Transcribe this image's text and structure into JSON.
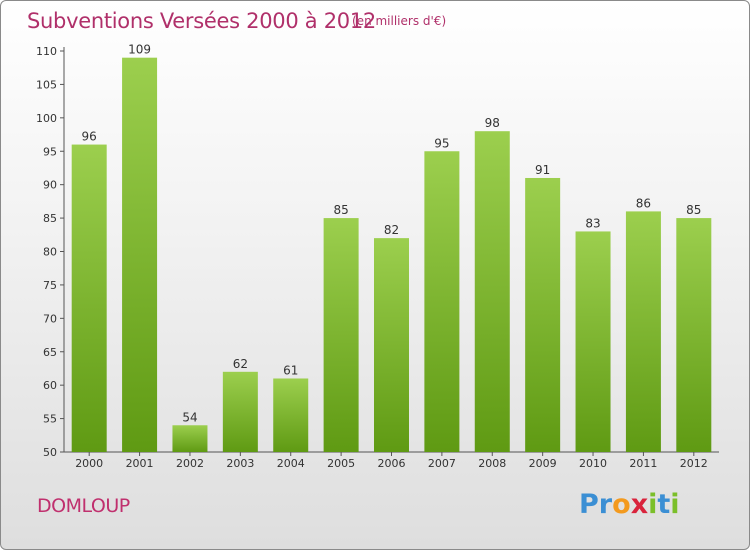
{
  "title": "Subventions Versées 2000 à 2012",
  "subtitle": "(en milliers d'€)",
  "commune": "DOMLOUP",
  "brand": {
    "letters": [
      {
        "char": "P",
        "color": "#3b8fd4"
      },
      {
        "char": "r",
        "color": "#3b8fd4"
      },
      {
        "char": "o",
        "color": "#f39a1e"
      },
      {
        "char": "x",
        "color": "#d9233c"
      },
      {
        "char": "i",
        "color": "#7bbf2a"
      },
      {
        "char": "t",
        "color": "#3b8fd4"
      },
      {
        "char": "i",
        "color": "#7bbf2a"
      }
    ]
  },
  "colors": {
    "title": "#b0306a",
    "bar_light": "#9ccf4e",
    "bar_dark": "#5f9a13",
    "axis": "#555555"
  },
  "chart_data": {
    "type": "bar",
    "title": "Subventions Versées 2000 à 2012",
    "subtitle": "(en milliers d'€)",
    "categories": [
      "2000",
      "2001",
      "2002",
      "2003",
      "2004",
      "2005",
      "2006",
      "2007",
      "2008",
      "2009",
      "2010",
      "2011",
      "2012"
    ],
    "values": [
      96,
      109,
      54,
      62,
      61,
      85,
      82,
      95,
      98,
      91,
      83,
      86,
      85
    ],
    "xlabel": "",
    "ylabel": "",
    "ylim": [
      50,
      110
    ],
    "yticks": [
      50,
      55,
      60,
      65,
      70,
      75,
      80,
      85,
      90,
      95,
      100,
      105,
      110
    ],
    "grid": false,
    "legend": "none"
  }
}
